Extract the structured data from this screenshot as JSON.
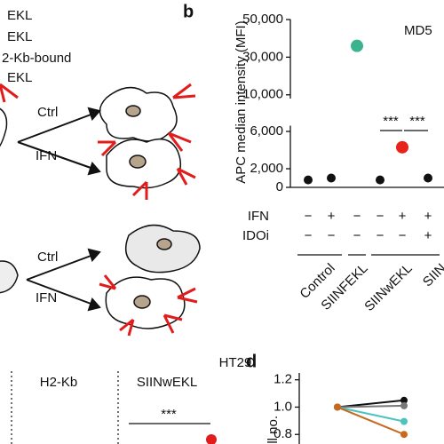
{
  "panel_a": {
    "legend_lines": [
      "EKL",
      "EKL",
      "2-Kb-bound",
      "EKL"
    ],
    "arrow_labels": [
      "Ctrl",
      "IFN",
      "Ctrl",
      "IFN"
    ]
  },
  "panel_c": {
    "title": "HT29",
    "columns": [
      "H2-Kb",
      "SIINwEKL"
    ],
    "annotation": "***"
  },
  "chart_data": [
    {
      "type": "scatter",
      "panel_label": "b",
      "title": "MD5",
      "y_label": "APC median intensity (MFI)",
      "categories": [
        null,
        null,
        null,
        null,
        null,
        null
      ],
      "values": [
        800,
        1000,
        36000,
        800,
        4300,
        1000
      ],
      "colors": [
        "#111111",
        "#111111",
        "#3bb38f",
        "#111111",
        "#e8231c",
        "#111111"
      ],
      "segments": [
        {
          "ylim": [
            8000,
            52000
          ],
          "yticks": [
            {
              "value": 10000,
              "label": "10,000"
            },
            {
              "value": 30000,
              "label": "30,000"
            },
            {
              "value": 50000,
              "label": "50,000"
            }
          ]
        },
        {
          "ylim": [
            0,
            7000
          ],
          "yticks": [
            0,
            {
              "value": 2000,
              "label": "2,000"
            },
            {
              "value": 6000,
              "label": "6,000"
            }
          ]
        }
      ],
      "rows": [
        {
          "name": "IFN",
          "values": [
            "−",
            "+",
            "−",
            "−",
            "+",
            "+"
          ]
        },
        {
          "name": "IDOi",
          "values": [
            "−",
            "−",
            "−",
            "−",
            "−",
            "+"
          ]
        }
      ],
      "groups": [
        "Control",
        "SIINFEKL",
        "SIINwEKL",
        "SIIN"
      ],
      "annotations": [
        "***",
        "***"
      ]
    },
    {
      "type": "line",
      "panel_label": "d",
      "y_label": "ell no.",
      "categories": [
        null,
        null
      ],
      "ylim": [
        0.73,
        1.25
      ],
      "yticks": [
        {
          "value": 0.8,
          "label": "0.8"
        },
        {
          "value": 1.0,
          "label": "1.0"
        },
        {
          "value": 1.2,
          "label": "1.2"
        }
      ],
      "series": [
        {
          "color": "#111111",
          "values": [
            1.0,
            1.05
          ]
        },
        {
          "color": "#777777",
          "values": [
            1.0,
            1.01
          ]
        },
        {
          "color": "#4cc3c0",
          "values": [
            1.0,
            0.895
          ]
        },
        {
          "color": "#c8691f",
          "values": [
            1.0,
            0.8
          ]
        }
      ]
    }
  ]
}
